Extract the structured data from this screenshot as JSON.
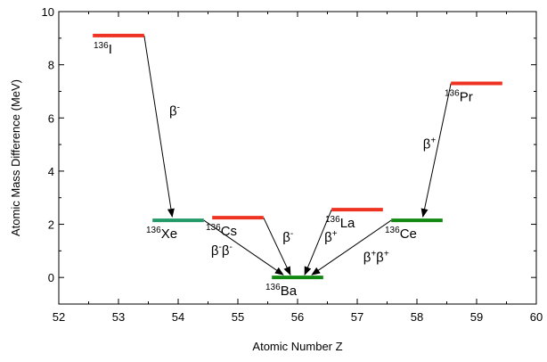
{
  "chart_data": {
    "type": "scatter",
    "title": "",
    "xlabel": "Atomic Number Z",
    "ylabel": "Atomic Mass Difference (MeV)",
    "xlim": [
      52,
      60
    ],
    "ylim": [
      -1,
      10
    ],
    "xticks": [
      "52",
      "53",
      "54",
      "55",
      "56",
      "57",
      "58",
      "59",
      "60"
    ],
    "yticks": [
      "0",
      "2",
      "4",
      "6",
      "8",
      "10"
    ],
    "grid": false,
    "colors": {
      "unstable": "#ee3322",
      "stable": "#118811",
      "stable_alt": "#229966"
    },
    "levels": [
      {
        "mass": "136",
        "symbol": "I",
        "z": 53,
        "value": 9.1,
        "status": "unstable",
        "label_side": "below-left"
      },
      {
        "mass": "136",
        "symbol": "Xe",
        "z": 54,
        "value": 2.15,
        "status": "stable_alt",
        "label_side": "below-left"
      },
      {
        "mass": "136",
        "symbol": "Cs",
        "z": 55,
        "value": 2.25,
        "status": "unstable",
        "label_side": "below-left"
      },
      {
        "mass": "136",
        "symbol": "Ba",
        "z": 56,
        "value": 0.0,
        "status": "stable",
        "label_side": "below-left"
      },
      {
        "mass": "136",
        "symbol": "La",
        "z": 57,
        "value": 2.55,
        "status": "unstable",
        "label_side": "below-left"
      },
      {
        "mass": "136",
        "symbol": "Ce",
        "z": 58,
        "value": 2.15,
        "status": "stable",
        "label_side": "below-left"
      },
      {
        "mass": "136",
        "symbol": "Pr",
        "z": 59,
        "value": 7.3,
        "status": "unstable",
        "label_side": "below-left"
      }
    ],
    "decays": [
      {
        "from": "I",
        "to": "Xe",
        "base": "β",
        "sup": "-",
        "label_x": 53.85,
        "label_y": 6.1
      },
      {
        "from": "Xe",
        "to": "Ba",
        "base": "β",
        "sup": "-",
        "base2": "β",
        "sup2": "-",
        "label_x": 54.55,
        "label_y": 0.85
      },
      {
        "from": "Cs",
        "to": "Ba",
        "base": "β",
        "sup": "-",
        "label_x": 55.75,
        "label_y": 1.35
      },
      {
        "from": "La",
        "to": "Ba",
        "base": "β",
        "sup": "+",
        "label_x": 56.45,
        "label_y": 1.35
      },
      {
        "from": "Ce",
        "to": "Ba",
        "base": "β",
        "sup": "+",
        "base2": "β",
        "sup2": "+",
        "label_x": 57.1,
        "label_y": 0.6
      },
      {
        "from": "Pr",
        "to": "Ce",
        "base": "β",
        "sup": "+",
        "label_x": 58.1,
        "label_y": 4.85
      }
    ]
  }
}
